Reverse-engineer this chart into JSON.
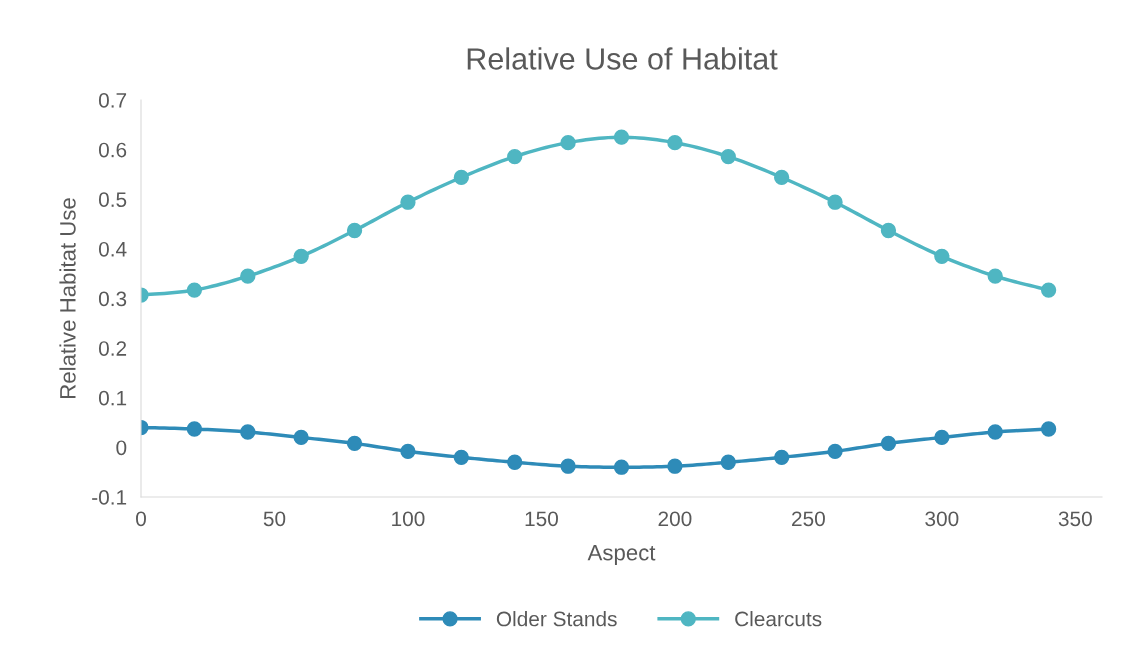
{
  "chart_data": {
    "type": "line",
    "title": "Relative Use of Habitat",
    "xlabel": "Aspect",
    "ylabel": "Relative Habitat Use",
    "x": [
      0,
      20,
      40,
      60,
      80,
      100,
      120,
      140,
      160,
      180,
      200,
      220,
      240,
      260,
      280,
      300,
      320,
      340
    ],
    "series": [
      {
        "name": "Older Stands",
        "color": "#2e8bb8",
        "values": [
          0.04,
          0.037,
          0.031,
          0.02,
          0.008,
          -0.008,
          -0.02,
          -0.03,
          -0.038,
          -0.04,
          -0.038,
          -0.03,
          -0.02,
          -0.008,
          0.008,
          0.02,
          0.031,
          0.037
        ]
      },
      {
        "name": "Clearcuts",
        "color": "#4fb6c2",
        "values": [
          0.307,
          0.317,
          0.345,
          0.385,
          0.437,
          0.494,
          0.544,
          0.586,
          0.614,
          0.625,
          0.614,
          0.586,
          0.544,
          0.494,
          0.437,
          0.385,
          0.345,
          0.317
        ]
      }
    ],
    "xlim": [
      0,
      360
    ],
    "xticks": [
      0,
      50,
      100,
      150,
      200,
      250,
      300,
      350
    ],
    "ylim": [
      -0.1,
      0.7
    ],
    "yticks": [
      {
        "value": -0.1,
        "label": "-0.1"
      },
      0,
      0.1,
      0.2,
      0.3,
      0.4,
      0.5,
      0.6,
      0.7
    ],
    "grid": false,
    "legend": "bottom",
    "marker": "circle",
    "line_style": "solid"
  }
}
